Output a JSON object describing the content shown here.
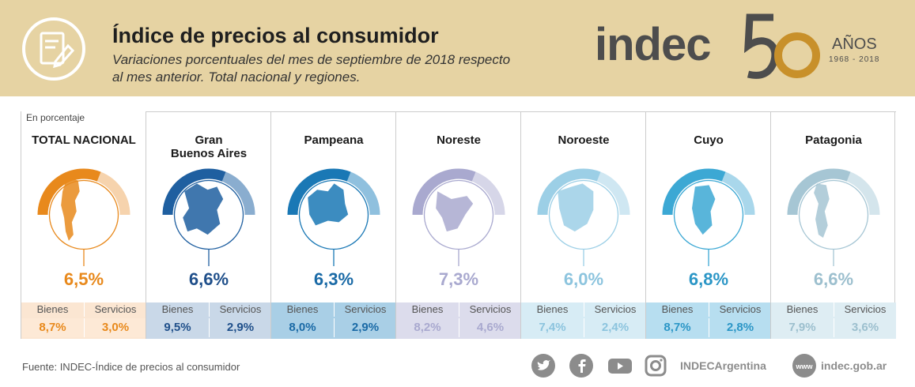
{
  "header": {
    "title": "Índice de precios al consumidor",
    "subtitle": "Variaciones porcentuales del mes de septiembre de 2018 respecto al mes anterior. Total nacional y regiones.",
    "logo_text": "indec",
    "logo_number": "50",
    "logo_anos": "AÑOS",
    "logo_years": "1968 - 2018"
  },
  "unit_label": "En porcentaje",
  "chart_data": {
    "type": "table",
    "columns": [
      "Bienes",
      "Servicios"
    ],
    "regions": [
      {
        "name": "TOTAL NACIONAL",
        "value": "6,5%",
        "bienes": "8,7%",
        "servicios": "3,0%",
        "color": "#e8891c",
        "light": "#f6d3ad",
        "cell_bg": "#fbe6d2",
        "text_color": "#e8891c"
      },
      {
        "name": "Gran\nBuenos Aires",
        "value": "6,6%",
        "bienes": "9,5%",
        "servicios": "2,9%",
        "color": "#1f5fa0",
        "light": "#8aadcf",
        "cell_bg": "#c9d8e8",
        "text_color": "#1f4f8a"
      },
      {
        "name": "Pampeana",
        "value": "6,3%",
        "bienes": "8,0%",
        "servicios": "2,9%",
        "color": "#1a78b5",
        "light": "#8fc0de",
        "cell_bg": "#a9cfe6",
        "text_color": "#1a6aa6"
      },
      {
        "name": "Noreste",
        "value": "7,3%",
        "bienes": "8,2%",
        "servicios": "4,6%",
        "color": "#a9a9cf",
        "light": "#d6d6e8",
        "cell_bg": "#dcdcec",
        "text_color": "#a9a9cf"
      },
      {
        "name": "Noroeste",
        "value": "6,0%",
        "bienes": "7,4%",
        "servicios": "2,4%",
        "color": "#9ccfe6",
        "light": "#cfe7f2",
        "cell_bg": "#d7ecf5",
        "text_color": "#8cc4de"
      },
      {
        "name": "Cuyo",
        "value": "6,8%",
        "bienes": "8,7%",
        "servicios": "2,8%",
        "color": "#3ca8d4",
        "light": "#a9d7eb",
        "cell_bg": "#b7def0",
        "text_color": "#2b96c6"
      },
      {
        "name": "Patagonia",
        "value": "6,6%",
        "bienes": "7,9%",
        "servicios": "3,6%",
        "color": "#a6c6d4",
        "light": "#d4e5ec",
        "cell_bg": "#deedf3",
        "text_color": "#9cbfce"
      }
    ]
  },
  "footer": {
    "source": "Fuente: INDEC-Índice de precios al consumidor",
    "social_handle": "INDECArgentina",
    "website_icon": "www",
    "website": "indec.gob.ar",
    "icons": [
      "twitter-icon",
      "facebook-icon",
      "youtube-icon",
      "instagram-icon"
    ]
  }
}
